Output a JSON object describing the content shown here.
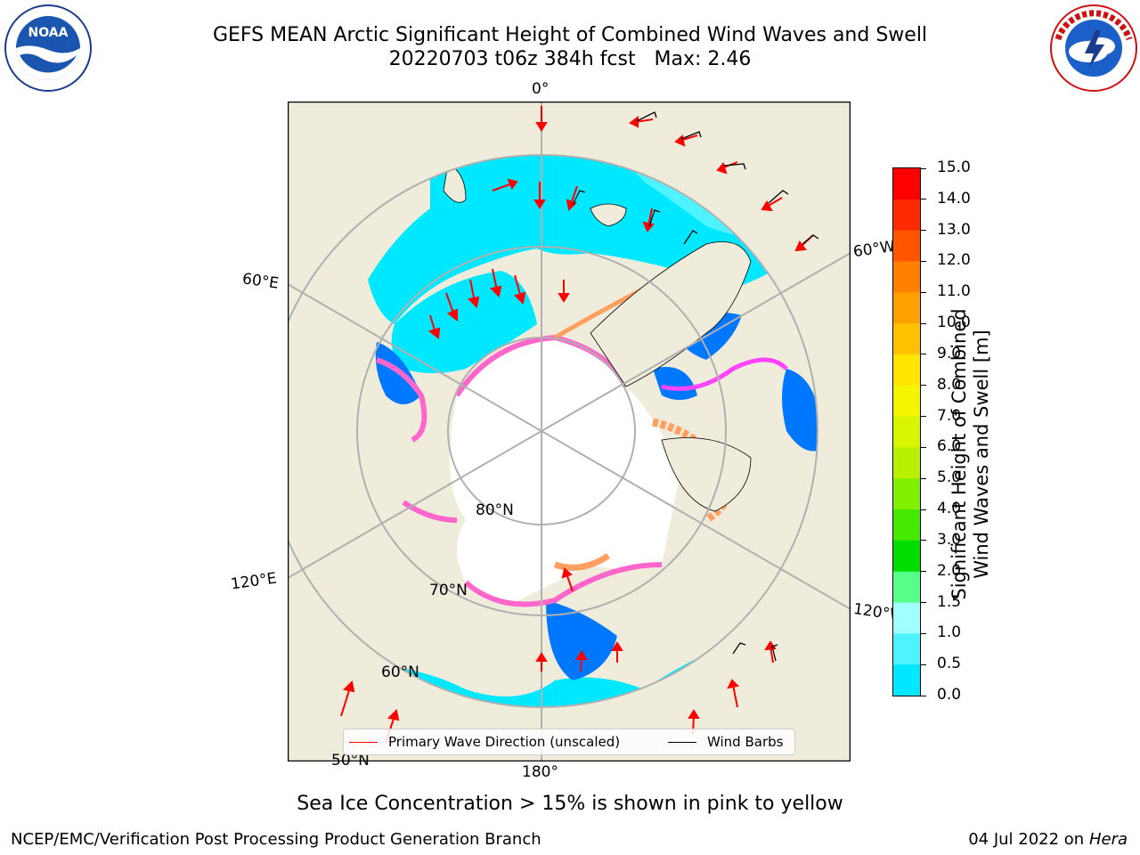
{
  "header": {
    "title_line1": "GEFS MEAN Arctic Significant Height of Combined Wind Waves and Swell",
    "title_line2": "20220703 t06z 384h fcst   Max: 2.46"
  },
  "logos": {
    "noaa": {
      "text": "NOAA",
      "ring_text": "NATIONAL OCEANIC AND ATMOSPHERIC ADMINISTRATION · U.S. DEPARTMENT OF COMMERCE",
      "icon": "noaa-logo"
    },
    "nws": {
      "ring_text": "NATIONAL WEATHER SERVICE",
      "icon": "nws-logo"
    }
  },
  "map": {
    "projection": "north-polar-stereographic",
    "meridian_labels": {
      "top": "0°",
      "bottom": "180°",
      "e60": "60°E",
      "e120": "120°E",
      "w60": "60°W",
      "w120": "120°W"
    },
    "parallel_labels": {
      "n80": "80°N",
      "n70": "70°N",
      "n60": "60°N",
      "n50": "50°N"
    },
    "colors": {
      "land": "#efecdc",
      "ice": "#ffffff",
      "ocean_low": "#00e8ff",
      "ocean_mid": "#4df4ff",
      "ocean_high": "#a0ffff",
      "deep": "#0077ff",
      "grid": "#b0b0b0",
      "arrow": "#ff0000",
      "barb": "#000000",
      "ice_edge": [
        "#ff66cc",
        "#ffa060",
        "#ff44ff"
      ]
    }
  },
  "legend": {
    "wave_label": "Primary Wave Direction (unscaled)",
    "wave_color": "#ff0000",
    "barb_label": "Wind Barbs",
    "barb_color": "#000000"
  },
  "colorbar": {
    "label_line1": "Significant Height of Combined",
    "label_line2": "Wind Waves and Swell [m]",
    "ticks": [
      "15.0",
      "14.0",
      "13.0",
      "12.0",
      "11.0",
      "10.0",
      "9.0",
      "8.0",
      "7.0",
      "6.0",
      "5.0",
      "4.0",
      "3.0",
      "2.0",
      "1.5",
      "1.0",
      "0.5",
      "0.0"
    ],
    "colors": [
      "#ff0000",
      "#ff2a00",
      "#ff5500",
      "#ff7f00",
      "#ffa000",
      "#ffc000",
      "#ffe500",
      "#f5f500",
      "#d8f500",
      "#b8f000",
      "#7ff000",
      "#44e800",
      "#00dd00",
      "#55ff88",
      "#a0ffff",
      "#4df4ff",
      "#00e8ff",
      "#0077ff",
      "#0000ff"
    ]
  },
  "subtitle": "Sea Ice Concentration > 15% is shown in pink to yellow",
  "footer": {
    "left": "NCEP/EMC/Verification Post Processing Product Generation Branch",
    "right_prefix": "04 Jul 2022 on ",
    "right_host": "Hera"
  }
}
